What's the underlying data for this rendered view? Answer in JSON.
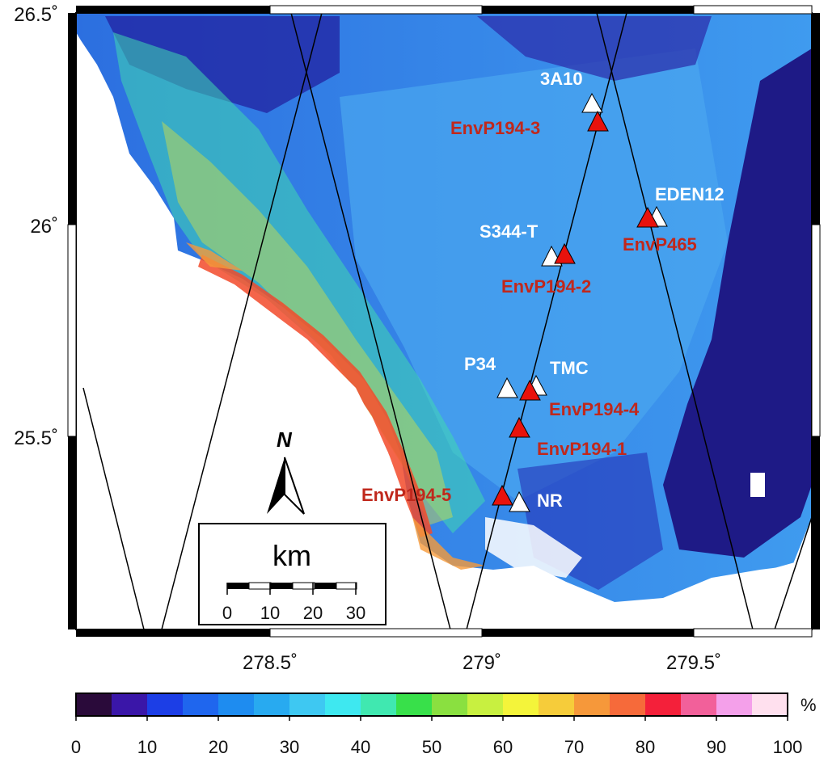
{
  "map": {
    "lat_ticks": [
      "26.5˚",
      "26˚",
      "25.5˚"
    ],
    "lon_ticks": [
      "278.5˚",
      "279˚",
      "279.5˚"
    ],
    "north_label": "N",
    "scalebar": {
      "unit": "km",
      "tick_labels": [
        "0",
        "10",
        "20",
        "30"
      ]
    },
    "stations_gps": [
      {
        "name": "3A10"
      },
      {
        "name": "EDEN12"
      },
      {
        "name": "S344-T"
      },
      {
        "name": "P34"
      },
      {
        "name": "TMC"
      },
      {
        "name": "NR"
      }
    ],
    "stations_env": [
      {
        "name": "EnvP194-3"
      },
      {
        "name": "EnvP465"
      },
      {
        "name": "EnvP194-2"
      },
      {
        "name": "EnvP194-4"
      },
      {
        "name": "EnvP194-1"
      },
      {
        "name": "EnvP194-5"
      }
    ],
    "colors": {
      "gps_marker": "#ffffff",
      "env_marker": "#e8120c",
      "env_label": "#c0281c",
      "gps_label": "#ffffff"
    }
  },
  "colorbar": {
    "unit": "%",
    "tick_labels": [
      "0",
      "10",
      "20",
      "30",
      "40",
      "50",
      "60",
      "70",
      "80",
      "90",
      "100"
    ],
    "colors": [
      "#2a0a3a",
      "#3a16a8",
      "#1c3ee6",
      "#1f66ee",
      "#1e8cf0",
      "#28aaf0",
      "#3ec8f2",
      "#3ee8f0",
      "#40e8b0",
      "#38e04a",
      "#8ae040",
      "#c8f040",
      "#f4f43a",
      "#f6cc3a",
      "#f6983a",
      "#f66a3a",
      "#f4203a",
      "#f2609a",
      "#f4a0ea",
      "#ffe0ee"
    ]
  }
}
